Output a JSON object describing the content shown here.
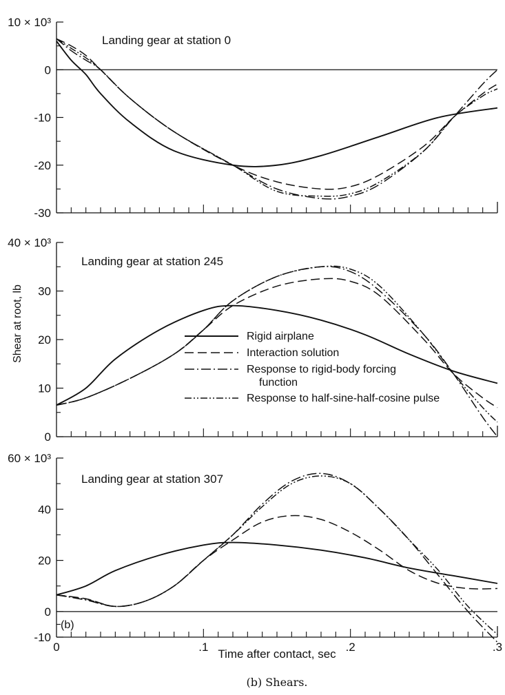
{
  "figure": {
    "y_axis_label": "Shear at root, lb",
    "x_axis_label": "Time after contact, sec",
    "caption": "(b) Shears.",
    "panel_tag": "(b)"
  },
  "chart_data": [
    {
      "type": "line",
      "title": "Landing gear at station 0",
      "ylim": [
        -30000,
        10000
      ],
      "xlim": [
        0,
        0.3
      ],
      "x_tick_labels": [],
      "y_tick_values": [
        10000,
        0,
        -10000,
        -20000,
        -30000
      ],
      "y_tick_labels": [
        "10 × 10³",
        "0",
        "-10",
        "-20",
        "-30"
      ],
      "series": [
        {
          "style": "solid_thick",
          "x": [
            0,
            0.01,
            0.02,
            0.03,
            0.05,
            0.08,
            0.12,
            0.15,
            0.18,
            0.22,
            0.26,
            0.3
          ],
          "values": [
            6000,
            2000,
            -1000,
            -5000,
            -11000,
            -17000,
            -20000,
            -20000,
            -18000,
            -14000,
            -10000,
            -8000
          ]
        },
        {
          "style": "dashed",
          "x": [
            0,
            0.01,
            0.02,
            0.03,
            0.05,
            0.08,
            0.12,
            0.15,
            0.18,
            0.2,
            0.22,
            0.25,
            0.27,
            0.29,
            0.3
          ],
          "values": [
            6500,
            5000,
            3000,
            0,
            -6000,
            -13000,
            -20000,
            -23500,
            -25000,
            -24500,
            -22000,
            -16000,
            -10000,
            -5000,
            -3000
          ]
        },
        {
          "style": "dash_dot",
          "x": [
            0,
            0.01,
            0.02,
            0.03,
            0.05,
            0.08,
            0.12,
            0.15,
            0.18,
            0.2,
            0.22,
            0.25,
            0.27,
            0.29,
            0.3
          ],
          "values": [
            6500,
            4000,
            2000,
            0,
            -6000,
            -13000,
            -20000,
            -25000,
            -27000,
            -26500,
            -24000,
            -17000,
            -10000,
            -3000,
            0
          ]
        },
        {
          "style": "dash_dot_dot",
          "x": [
            0,
            0.01,
            0.02,
            0.03,
            0.05,
            0.08,
            0.12,
            0.15,
            0.18,
            0.2,
            0.22,
            0.25,
            0.27,
            0.29,
            0.3
          ],
          "values": [
            6500,
            4500,
            2500,
            0,
            -6000,
            -13000,
            -20000,
            -25500,
            -26500,
            -26000,
            -23500,
            -17000,
            -10000,
            -5500,
            -4000
          ]
        }
      ]
    },
    {
      "type": "line",
      "title": "Landing gear at station 245",
      "ylim": [
        0,
        40000
      ],
      "xlim": [
        0,
        0.3
      ],
      "x_tick_labels": [],
      "y_tick_values": [
        40000,
        30000,
        20000,
        10000,
        0
      ],
      "y_tick_labels": [
        "40 × 10³",
        "30",
        "20",
        "10",
        "0"
      ],
      "legend": [
        "Rigid airplane",
        "Interaction solution",
        "Response to rigid-body forcing function",
        "Response to half-sine-half-cosine pulse"
      ],
      "series": [
        {
          "style": "solid_thick",
          "x": [
            0,
            0.02,
            0.04,
            0.07,
            0.1,
            0.12,
            0.15,
            0.18,
            0.21,
            0.24,
            0.27,
            0.3
          ],
          "values": [
            6500,
            10000,
            16000,
            22000,
            26000,
            27000,
            26000,
            24000,
            21000,
            17000,
            13500,
            11000
          ]
        },
        {
          "style": "dashed",
          "x": [
            0,
            0.02,
            0.05,
            0.08,
            0.1,
            0.12,
            0.15,
            0.18,
            0.2,
            0.22,
            0.25,
            0.27,
            0.29,
            0.3
          ],
          "values": [
            6500,
            8000,
            12000,
            17000,
            22000,
            27000,
            31000,
            32500,
            32000,
            29000,
            20000,
            13000,
            8000,
            6000
          ]
        },
        {
          "style": "dash_dot",
          "x": [
            0,
            0.02,
            0.05,
            0.08,
            0.1,
            0.12,
            0.15,
            0.18,
            0.2,
            0.22,
            0.25,
            0.27,
            0.29,
            0.3
          ],
          "values": [
            6500,
            8000,
            12000,
            17000,
            22000,
            28000,
            33000,
            35000,
            34000,
            30000,
            21000,
            13000,
            4000,
            0
          ]
        },
        {
          "style": "dash_dot_dot",
          "x": [
            0,
            0.02,
            0.05,
            0.08,
            0.1,
            0.12,
            0.15,
            0.18,
            0.2,
            0.22,
            0.25,
            0.27,
            0.29,
            0.3
          ],
          "values": [
            6500,
            8000,
            12000,
            17000,
            22000,
            28000,
            33000,
            35000,
            34500,
            31000,
            21000,
            13000,
            6000,
            3000
          ]
        }
      ]
    },
    {
      "type": "line",
      "title": "Landing gear at station 307",
      "ylim": [
        -10000,
        60000
      ],
      "xlim": [
        0,
        0.3
      ],
      "x_tick_values": [
        0,
        0.1,
        0.2,
        0.3
      ],
      "x_tick_labels": [
        "0",
        ".1",
        ".2",
        ".3"
      ],
      "y_tick_values": [
        60000,
        40000,
        20000,
        0,
        -10000
      ],
      "y_tick_labels": [
        "60 × 10³",
        "40",
        "20",
        "0",
        "-10"
      ],
      "series": [
        {
          "style": "solid_thick",
          "x": [
            0,
            0.02,
            0.04,
            0.07,
            0.1,
            0.12,
            0.15,
            0.18,
            0.21,
            0.24,
            0.27,
            0.3
          ],
          "values": [
            6500,
            10000,
            16000,
            22000,
            26000,
            27000,
            26000,
            24000,
            21000,
            17000,
            14000,
            11000
          ]
        },
        {
          "style": "dashed",
          "x": [
            0,
            0.02,
            0.04,
            0.06,
            0.08,
            0.1,
            0.12,
            0.14,
            0.16,
            0.18,
            0.2,
            0.22,
            0.24,
            0.26,
            0.28,
            0.3
          ],
          "values": [
            6500,
            5000,
            2000,
            4000,
            10000,
            20000,
            28000,
            35000,
            37500,
            36000,
            31000,
            24000,
            16000,
            11000,
            9000,
            9000
          ]
        },
        {
          "style": "dash_dot",
          "x": [
            0,
            0.02,
            0.04,
            0.06,
            0.08,
            0.1,
            0.12,
            0.14,
            0.16,
            0.18,
            0.2,
            0.22,
            0.24,
            0.26,
            0.28,
            0.3
          ],
          "values": [
            6500,
            4500,
            2000,
            4000,
            10000,
            20000,
            30000,
            42000,
            51000,
            54000,
            50000,
            40000,
            28000,
            14000,
            0,
            -12000
          ]
        },
        {
          "style": "dash_dot_dot",
          "x": [
            0,
            0.02,
            0.04,
            0.06,
            0.08,
            0.1,
            0.12,
            0.14,
            0.16,
            0.18,
            0.2,
            0.22,
            0.24,
            0.26,
            0.28,
            0.3
          ],
          "values": [
            6500,
            4800,
            2000,
            4000,
            10000,
            20000,
            30000,
            41000,
            50000,
            53000,
            50000,
            40000,
            28000,
            16000,
            2000,
            -9000
          ]
        }
      ]
    }
  ]
}
